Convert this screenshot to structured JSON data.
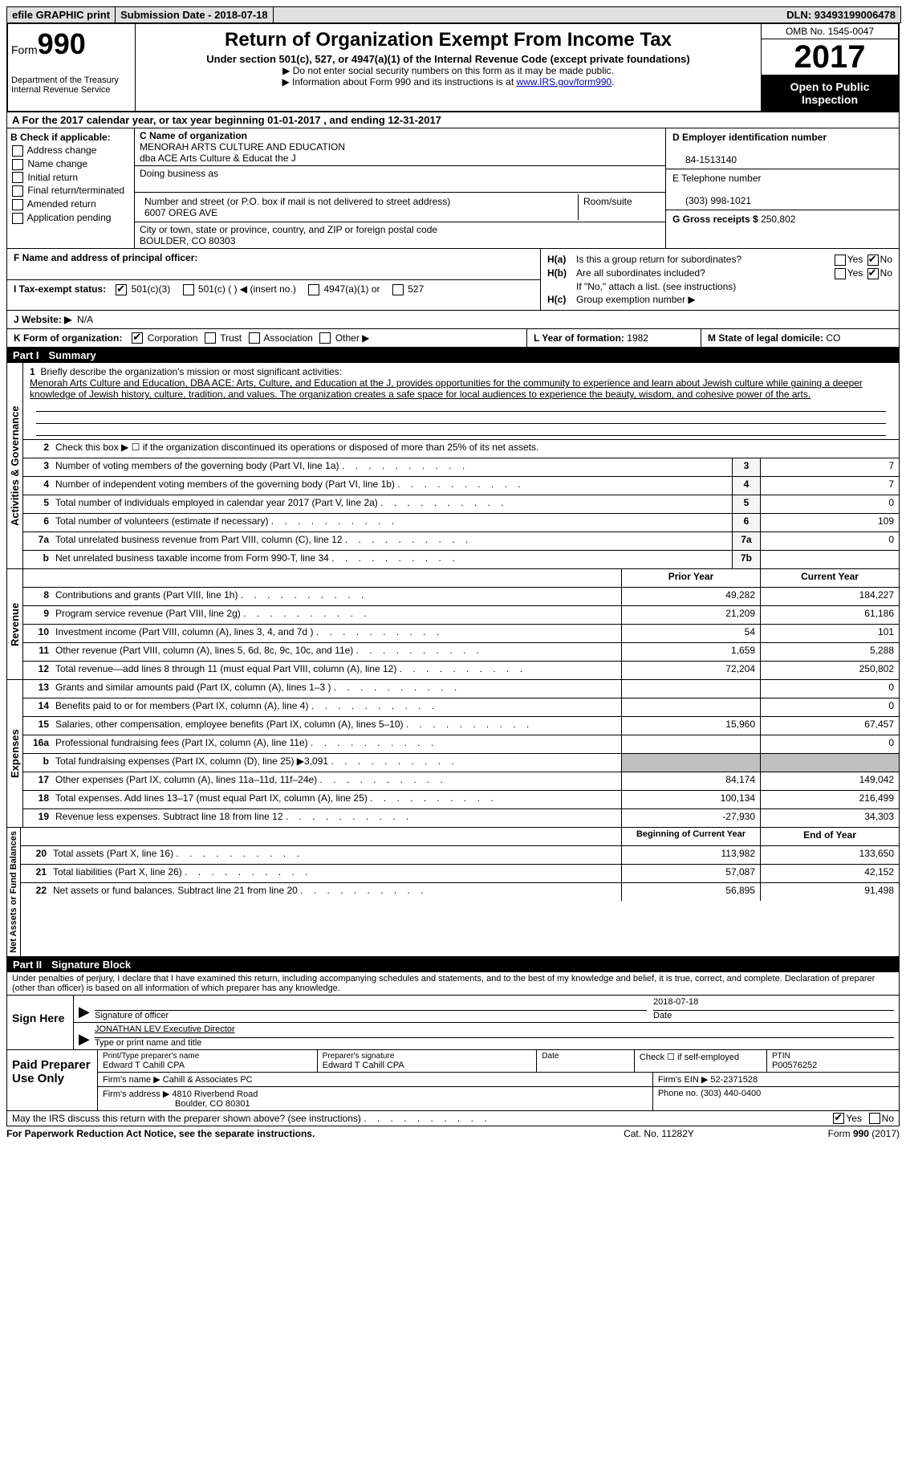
{
  "topbar": {
    "efile": "efile GRAPHIC print",
    "submission_label": "Submission Date -",
    "submission_date": "2018-07-18",
    "dln_label": "DLN:",
    "dln": "93493199006478"
  },
  "header": {
    "form_word": "Form",
    "form_number": "990",
    "dept": "Department of the Treasury",
    "irs": "Internal Revenue Service",
    "title": "Return of Organization Exempt From Income Tax",
    "subtitle": "Under section 501(c), 527, or 4947(a)(1) of the Internal Revenue Code (except private foundations)",
    "note1": "▶ Do not enter social security numbers on this form as it may be made public.",
    "note2": "▶ Information about Form 990 and its instructions is at ",
    "link": "www.IRS.gov/form990",
    "omb": "OMB No. 1545-0047",
    "year": "2017",
    "open1": "Open to Public",
    "open2": "Inspection"
  },
  "sectionA": {
    "text": "A  For the 2017 calendar year, or tax year beginning 01-01-2017   , and ending 12-31-2017"
  },
  "colB": {
    "header": "B Check if applicable:",
    "opts": [
      "Address change",
      "Name change",
      "Initial return",
      "Final return/terminated",
      "Amended return",
      "Application pending"
    ]
  },
  "colC": {
    "name_label": "C Name of organization",
    "name": "MENORAH ARTS CULTURE AND EDUCATION",
    "dba": "dba ACE Arts Culture & Educat the J",
    "dba_label": "Doing business as",
    "street_label": "Number and street (or P.O. box if mail is not delivered to street address)",
    "street": "6007 OREG AVE",
    "room_label": "Room/suite",
    "city_label": "City or town, state or province, country, and ZIP or foreign postal code",
    "city": "BOULDER, CO  80303"
  },
  "colD": {
    "ein_label": "D Employer identification number",
    "ein": "84-1513140",
    "phone_label": "E Telephone number",
    "phone": "(303) 998-1021",
    "gross_label": "G Gross receipts $",
    "gross": "250,802"
  },
  "rowF": {
    "label": "F Name and address of principal officer:"
  },
  "rowH": {
    "ha_label": "H(a)",
    "ha_text": "Is this a group return for subordinates?",
    "hb_label": "H(b)",
    "hb_text": "Are all subordinates included?",
    "hb_note": "If \"No,\" attach a list. (see instructions)",
    "hc_label": "H(c)",
    "hc_text": "Group exemption number ▶",
    "yes": "Yes",
    "no": "No"
  },
  "rowI": {
    "label": "I  Tax-exempt status:",
    "opt1": "501(c)(3)",
    "opt2": "501(c) (   ) ◀ (insert no.)",
    "opt3": "4947(a)(1) or",
    "opt4": "527"
  },
  "rowJ": {
    "label": "J  Website: ▶",
    "value": "N/A"
  },
  "rowK": {
    "label": "K Form of organization:",
    "opts": [
      "Corporation",
      "Trust",
      "Association",
      "Other ▶"
    ],
    "l_label": "L Year of formation:",
    "l_val": "1982",
    "m_label": "M State of legal domicile:",
    "m_val": "CO"
  },
  "part1": {
    "num": "Part I",
    "title": "Summary",
    "side_ag": "Activities & Governance",
    "side_rev": "Revenue",
    "side_exp": "Expenses",
    "side_net": "Net Assets or Fund Balances",
    "line1_label": "Briefly describe the organization's mission or most significant activities:",
    "mission": "Menorah Arts Culture and Education, DBA ACE: Arts, Culture, and Education at the J, provides opportunities for the community to experience and learn about Jewish culture while gaining a deeper knowledge of Jewish history, culture, tradition, and values. The organization creates a safe space for local audiences to experience the beauty, wisdom, and cohesive power of the arts.",
    "line2": "Check this box ▶ ☐  if the organization discontinued its operations or disposed of more than 25% of its net assets.",
    "lines_gov": [
      {
        "n": "3",
        "d": "Number of voting members of the governing body (Part VI, line 1a)",
        "box": "3",
        "v": "7"
      },
      {
        "n": "4",
        "d": "Number of independent voting members of the governing body (Part VI, line 1b)",
        "box": "4",
        "v": "7"
      },
      {
        "n": "5",
        "d": "Total number of individuals employed in calendar year 2017 (Part V, line 2a)",
        "box": "5",
        "v": "0"
      },
      {
        "n": "6",
        "d": "Total number of volunteers (estimate if necessary)",
        "box": "6",
        "v": "109"
      },
      {
        "n": "7a",
        "d": "Total unrelated business revenue from Part VIII, column (C), line 12",
        "box": "7a",
        "v": "0"
      },
      {
        "n": "b",
        "d": "Net unrelated business taxable income from Form 990-T, line 34",
        "box": "7b",
        "v": ""
      }
    ],
    "hdr_prior": "Prior Year",
    "hdr_current": "Current Year",
    "lines_rev": [
      {
        "n": "8",
        "d": "Contributions and grants (Part VIII, line 1h)",
        "p": "49,282",
        "c": "184,227"
      },
      {
        "n": "9",
        "d": "Program service revenue (Part VIII, line 2g)",
        "p": "21,209",
        "c": "61,186"
      },
      {
        "n": "10",
        "d": "Investment income (Part VIII, column (A), lines 3, 4, and 7d )",
        "p": "54",
        "c": "101"
      },
      {
        "n": "11",
        "d": "Other revenue (Part VIII, column (A), lines 5, 6d, 8c, 9c, 10c, and 11e)",
        "p": "1,659",
        "c": "5,288"
      },
      {
        "n": "12",
        "d": "Total revenue—add lines 8 through 11 (must equal Part VIII, column (A), line 12)",
        "p": "72,204",
        "c": "250,802"
      }
    ],
    "lines_exp": [
      {
        "n": "13",
        "d": "Grants and similar amounts paid (Part IX, column (A), lines 1–3 )",
        "p": "",
        "c": "0"
      },
      {
        "n": "14",
        "d": "Benefits paid to or for members (Part IX, column (A), line 4)",
        "p": "",
        "c": "0"
      },
      {
        "n": "15",
        "d": "Salaries, other compensation, employee benefits (Part IX, column (A), lines 5–10)",
        "p": "15,960",
        "c": "67,457"
      },
      {
        "n": "16a",
        "d": "Professional fundraising fees (Part IX, column (A), line 11e)",
        "p": "",
        "c": "0"
      },
      {
        "n": "b",
        "d": "Total fundraising expenses (Part IX, column (D), line 25) ▶3,091",
        "p": "shade",
        "c": "shade"
      },
      {
        "n": "17",
        "d": "Other expenses (Part IX, column (A), lines 11a–11d, 11f–24e)",
        "p": "84,174",
        "c": "149,042"
      },
      {
        "n": "18",
        "d": "Total expenses. Add lines 13–17 (must equal Part IX, column (A), line 25)",
        "p": "100,134",
        "c": "216,499"
      },
      {
        "n": "19",
        "d": "Revenue less expenses. Subtract line 18 from line 12",
        "p": "-27,930",
        "c": "34,303"
      }
    ],
    "hdr_begin": "Beginning of Current Year",
    "hdr_end": "End of Year",
    "lines_net": [
      {
        "n": "20",
        "d": "Total assets (Part X, line 16)",
        "p": "113,982",
        "c": "133,650"
      },
      {
        "n": "21",
        "d": "Total liabilities (Part X, line 26)",
        "p": "57,087",
        "c": "42,152"
      },
      {
        "n": "22",
        "d": "Net assets or fund balances. Subtract line 21 from line 20",
        "p": "56,895",
        "c": "91,498"
      }
    ]
  },
  "part2": {
    "num": "Part II",
    "title": "Signature Block",
    "perjury": "Under penalties of perjury, I declare that I have examined this return, including accompanying schedules and statements, and to the best of my knowledge and belief, it is true, correct, and complete. Declaration of preparer (other than officer) is based on all information of which preparer has any knowledge.",
    "sign_here": "Sign Here",
    "sig_officer": "Signature of officer",
    "sig_date": "2018-07-18",
    "date_label": "Date",
    "officer_name": "JONATHAN LEV  Executive Director",
    "type_name": "Type or print name and title",
    "paid_prep": "Paid Preparer Use Only",
    "prep_name_label": "Print/Type preparer's name",
    "prep_name": "Edward T Cahill CPA",
    "prep_sig_label": "Preparer's signature",
    "prep_sig": "Edward T Cahill CPA",
    "prep_date_label": "Date",
    "check_self": "Check ☐ if self-employed",
    "ptin_label": "PTIN",
    "ptin": "P00576252",
    "firm_name_label": "Firm's name    ▶",
    "firm_name": "Cahill & Associates PC",
    "firm_ein_label": "Firm's EIN ▶",
    "firm_ein": "52-2371528",
    "firm_addr_label": "Firm's address ▶",
    "firm_addr1": "4810 Riverbend Road",
    "firm_addr2": "Boulder, CO  80301",
    "phone_label": "Phone no.",
    "phone": "(303) 440-0400"
  },
  "footer": {
    "discuss": "May the IRS discuss this return with the preparer shown above? (see instructions)",
    "yes": "Yes",
    "no": "No",
    "paperwork": "For Paperwork Reduction Act Notice, see the separate instructions.",
    "cat": "Cat. No. 11282Y",
    "form": "Form 990 (2017)"
  }
}
